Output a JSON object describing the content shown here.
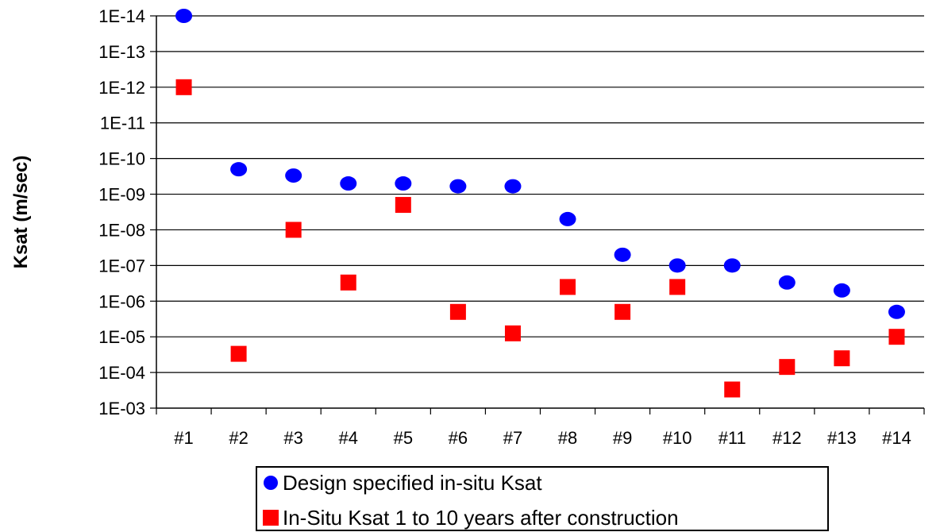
{
  "chart_data": {
    "type": "scatter",
    "title": "",
    "xlabel": "",
    "ylabel": "Ksat (m/sec)",
    "y_scale": "log",
    "y_axis_direction": "reversed",
    "ylim": [
      0.001,
      1e-14
    ],
    "y_tick_labels": [
      "1E-14",
      "1E-13",
      "1E-12",
      "1E-11",
      "1E-10",
      "1E-09",
      "1E-08",
      "1E-07",
      "1E-06",
      "1E-05",
      "1E-04",
      "1E-03"
    ],
    "categories": [
      "#1",
      "#2",
      "#3",
      "#4",
      "#5",
      "#6",
      "#7",
      "#8",
      "#9",
      "#10",
      "#11",
      "#12",
      "#13",
      "#14"
    ],
    "grid": "horizontal",
    "legend_position": "bottom",
    "series": [
      {
        "name": "Design specified in-situ Ksat",
        "marker": "circle",
        "color": "#0000FF",
        "values": [
          1e-14,
          2e-10,
          3e-10,
          5e-10,
          5e-10,
          6e-10,
          6e-10,
          5e-09,
          5e-08,
          1e-07,
          1e-07,
          3e-07,
          5e-07,
          2e-06
        ]
      },
      {
        "name": "In-Situ Ksat 1 to 10 years after construction",
        "marker": "square",
        "color": "#FF0000",
        "values": [
          1e-12,
          3e-05,
          1e-08,
          3e-07,
          2e-09,
          2e-06,
          8e-06,
          4e-07,
          2e-06,
          4e-07,
          0.0003,
          7e-05,
          4e-05,
          1e-05
        ]
      }
    ]
  }
}
